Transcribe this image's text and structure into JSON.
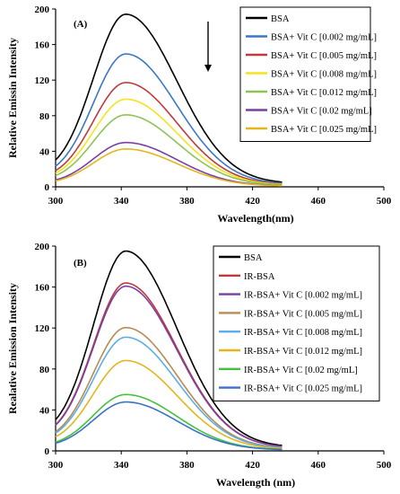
{
  "chart_data": [
    {
      "type": "line",
      "panel_label": "(A)",
      "xlabel": "Wavelength(nm)",
      "ylabel": "Relative Emissin Intensity",
      "xlim": [
        300,
        500
      ],
      "ylim": [
        0,
        200
      ],
      "xticks": [
        300,
        340,
        380,
        420,
        460,
        500
      ],
      "yticks": [
        0,
        40,
        80,
        120,
        160,
        200
      ],
      "x_range": [
        300,
        438
      ],
      "grid": false,
      "legend_position": "top-right",
      "annotations": [
        "downward arrow"
      ],
      "series": [
        {
          "name": "BSA",
          "color": "#000000",
          "peak": 187
        },
        {
          "name": "BSA+ Vit C [0.002 mg/mL]",
          "color": "#3b78c4",
          "peak": 144
        },
        {
          "name": "BSA+ Vit C [0.005 mg/mL]",
          "color": "#c0393b",
          "peak": 113
        },
        {
          "name": "BSA+ Vit C [0.008 mg/mL]",
          "color": "#f4e31f",
          "peak": 95
        },
        {
          "name": "BSA+ Vit C [0.012 mg/mL]",
          "color": "#8fc257",
          "peak": 78
        },
        {
          "name": "BSA+ Vit C [0.02 mg/mL]",
          "color": "#7a3fa3",
          "peak": 48
        },
        {
          "name": "BSA+ Vit C [0.025 mg/mL]",
          "color": "#e3b51f",
          "peak": 41
        }
      ]
    },
    {
      "type": "line",
      "panel_label": "(B)",
      "xlabel": "Wavelength (nm)",
      "ylabel": "Realative Emission Intensity",
      "xlim": [
        300,
        500
      ],
      "ylim": [
        0,
        200
      ],
      "xticks": [
        300,
        340,
        380,
        420,
        460,
        500
      ],
      "yticks": [
        0,
        40,
        80,
        120,
        160,
        200
      ],
      "x_range": [
        300,
        438
      ],
      "grid": false,
      "legend_position": "top-right",
      "series": [
        {
          "name": "BSA",
          "color": "#000000",
          "peak": 188
        },
        {
          "name": "IR-BSA",
          "color": "#c0393b",
          "peak": 158
        },
        {
          "name": "IR-BSA+ Vit C [0.002 mg/mL]",
          "color": "#7a3fa3",
          "peak": 155
        },
        {
          "name": "IR-BSA+ Vit C [0.005 mg/mL]",
          "color": "#b98a52",
          "peak": 116
        },
        {
          "name": "IR-BSA+ Vit C [0.008 mg/mL]",
          "color": "#5aaee8",
          "peak": 107
        },
        {
          "name": "IR-BSA+ Vit C [0.012 mg/mL]",
          "color": "#e3b51f",
          "peak": 85
        },
        {
          "name": "IR-BSA+ Vit C [0.02 mg/mL]",
          "color": "#44c23e",
          "peak": 53
        },
        {
          "name": "IR-BSA+ Vit C [0.025 mg/mL]",
          "color": "#3a72c4",
          "peak": 46
        }
      ]
    }
  ]
}
